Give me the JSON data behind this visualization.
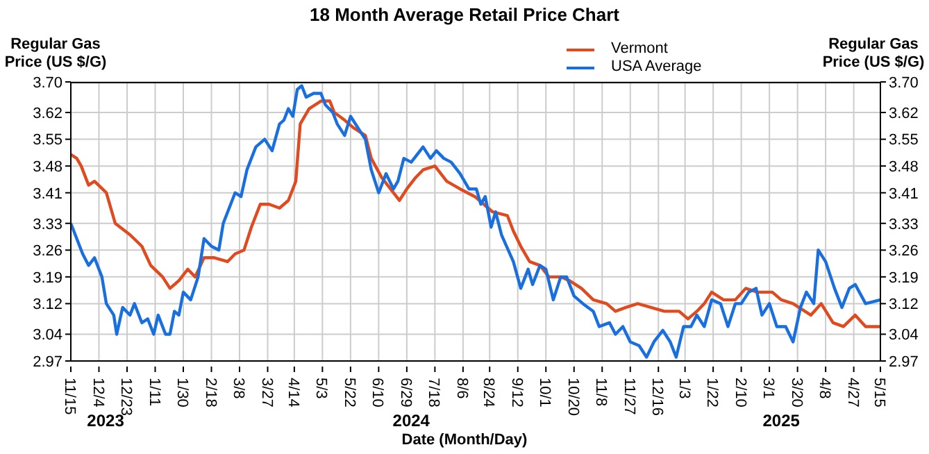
{
  "chart_data": {
    "type": "line",
    "title": "18 Month Average Retail Price Chart",
    "xlabel": "Date (Month/Day)",
    "ylabel": "Regular Gas Price (US $/G)",
    "y2label": "Regular Gas Price (US $/G)",
    "legend": "top",
    "grid": true,
    "xlim": [
      "2023-11-15",
      "2025-05-15"
    ],
    "xticks": [
      {
        "value": "2023-11-15",
        "label": "11/15"
      },
      {
        "value": "2023-12-04",
        "label": "12/4"
      },
      {
        "value": "2023-12-23",
        "label": "12/23"
      },
      {
        "value": "2024-01-11",
        "label": "1/11"
      },
      {
        "value": "2024-01-30",
        "label": "1/30"
      },
      {
        "value": "2024-02-18",
        "label": "2/18"
      },
      {
        "value": "2024-03-08",
        "label": "3/8"
      },
      {
        "value": "2024-03-27",
        "label": "3/27"
      },
      {
        "value": "2024-04-14",
        "label": "4/14"
      },
      {
        "value": "2024-05-03",
        "label": "5/3"
      },
      {
        "value": "2024-05-22",
        "label": "5/22"
      },
      {
        "value": "2024-06-10",
        "label": "6/10"
      },
      {
        "value": "2024-06-29",
        "label": "6/29"
      },
      {
        "value": "2024-07-18",
        "label": "7/18"
      },
      {
        "value": "2024-08-06",
        "label": "8/6"
      },
      {
        "value": "2024-08-24",
        "label": "8/24"
      },
      {
        "value": "2024-09-12",
        "label": "9/12"
      },
      {
        "value": "2024-10-01",
        "label": "10/1"
      },
      {
        "value": "2024-10-20",
        "label": "10/20"
      },
      {
        "value": "2024-11-08",
        "label": "11/8"
      },
      {
        "value": "2024-11-27",
        "label": "11/27"
      },
      {
        "value": "2024-12-16",
        "label": "12/16"
      },
      {
        "value": "2025-01-03",
        "label": "1/3"
      },
      {
        "value": "2025-01-22",
        "label": "1/22"
      },
      {
        "value": "2025-02-10",
        "label": "2/10"
      },
      {
        "value": "2025-03-01",
        "label": "3/1"
      },
      {
        "value": "2025-03-20",
        "label": "3/20"
      },
      {
        "value": "2025-04-08",
        "label": "4/8"
      },
      {
        "value": "2025-04-27",
        "label": "4/27"
      },
      {
        "value": "2025-05-15",
        "label": "5/15"
      }
    ],
    "ylim": [
      2.97,
      3.7
    ],
    "yticks": [
      2.97,
      3.04,
      3.12,
      3.19,
      3.26,
      3.33,
      3.41,
      3.48,
      3.55,
      3.62,
      {
        "value": 3.7,
        "label": "3.70"
      }
    ],
    "y2lim": [
      2.97,
      3.7
    ],
    "y2ticks": [
      2.97,
      3.04,
      3.12,
      3.19,
      3.26,
      3.33,
      3.41,
      3.48,
      3.55,
      3.62,
      {
        "value": 3.7,
        "label": "3.70"
      }
    ],
    "annotations": [
      "2023",
      "2024",
      "2025"
    ],
    "series": [
      {
        "name": "Vermont",
        "color": "#e04a1f",
        "x": [
          "2023-11-15",
          "2023-11-19",
          "2023-11-22",
          "2023-11-27",
          "2023-12-01",
          "2023-12-09",
          "2023-12-15",
          "2023-12-25",
          "2024-01-02",
          "2024-01-08",
          "2024-01-16",
          "2024-01-21",
          "2024-01-27",
          "2024-02-02",
          "2024-02-07",
          "2024-02-13",
          "2024-02-20",
          "2024-02-29",
          "2024-03-05",
          "2024-03-11",
          "2024-03-16",
          "2024-03-22",
          "2024-03-28",
          "2024-04-04",
          "2024-04-10",
          "2024-04-15",
          "2024-04-18",
          "2024-04-24",
          "2024-05-02",
          "2024-05-08",
          "2024-05-11",
          "2024-05-18",
          "2024-05-24",
          "2024-06-01",
          "2024-06-05",
          "2024-06-12",
          "2024-06-18",
          "2024-06-24",
          "2024-06-29",
          "2024-07-05",
          "2024-07-10",
          "2024-07-18",
          "2024-07-26",
          "2024-08-04",
          "2024-08-14",
          "2024-08-20",
          "2024-08-26",
          "2024-09-05",
          "2024-09-09",
          "2024-09-14",
          "2024-09-20",
          "2024-09-27",
          "2024-10-03",
          "2024-10-11",
          "2024-10-17",
          "2024-10-25",
          "2024-11-02",
          "2024-11-11",
          "2024-11-17",
          "2024-11-24",
          "2024-12-02",
          "2024-12-11",
          "2024-12-20",
          "2024-12-30",
          "2025-01-05",
          "2025-01-11",
          "2025-01-16",
          "2025-01-21",
          "2025-01-29",
          "2025-02-06",
          "2025-02-13",
          "2025-02-21",
          "2025-03-03",
          "2025-03-09",
          "2025-03-17",
          "2025-03-25",
          "2025-03-29",
          "2025-04-05",
          "2025-04-13",
          "2025-04-20",
          "2025-04-28",
          "2025-05-05",
          "2025-05-15"
        ],
        "values": [
          3.51,
          3.5,
          3.48,
          3.43,
          3.44,
          3.41,
          3.33,
          3.3,
          3.27,
          3.22,
          3.19,
          3.16,
          3.18,
          3.21,
          3.19,
          3.24,
          3.24,
          3.23,
          3.25,
          3.26,
          3.32,
          3.38,
          3.38,
          3.37,
          3.39,
          3.44,
          3.59,
          3.63,
          3.65,
          3.65,
          3.62,
          3.6,
          3.58,
          3.56,
          3.5,
          3.45,
          3.42,
          3.39,
          3.42,
          3.45,
          3.47,
          3.48,
          3.44,
          3.42,
          3.4,
          3.38,
          3.36,
          3.35,
          3.31,
          3.27,
          3.23,
          3.22,
          3.19,
          3.19,
          3.18,
          3.16,
          3.13,
          3.12,
          3.1,
          3.11,
          3.12,
          3.11,
          3.1,
          3.1,
          3.08,
          3.1,
          3.12,
          3.15,
          3.13,
          3.13,
          3.16,
          3.15,
          3.15,
          3.13,
          3.12,
          3.1,
          3.09,
          3.12,
          3.07,
          3.06,
          3.09,
          3.06,
          3.06
        ]
      },
      {
        "name": "USA Average",
        "color": "#1a6fdf",
        "x": [
          "2023-11-15",
          "2023-11-20",
          "2023-11-23",
          "2023-11-27",
          "2023-12-01",
          "2023-12-06",
          "2023-12-09",
          "2023-12-14",
          "2023-12-16",
          "2023-12-20",
          "2023-12-25",
          "2023-12-28",
          "2024-01-02",
          "2024-01-06",
          "2024-01-10",
          "2024-01-13",
          "2024-01-18",
          "2024-01-21",
          "2024-01-24",
          "2024-01-27",
          "2024-01-30",
          "2024-02-04",
          "2024-02-09",
          "2024-02-13",
          "2024-02-18",
          "2024-02-23",
          "2024-02-26",
          "2024-03-02",
          "2024-03-05",
          "2024-03-09",
          "2024-03-13",
          "2024-03-19",
          "2024-03-25",
          "2024-03-30",
          "2024-04-04",
          "2024-04-07",
          "2024-04-10",
          "2024-04-13",
          "2024-04-16",
          "2024-04-19",
          "2024-04-22",
          "2024-04-27",
          "2024-05-02",
          "2024-05-05",
          "2024-05-10",
          "2024-05-13",
          "2024-05-18",
          "2024-05-22",
          "2024-05-27",
          "2024-06-01",
          "2024-06-05",
          "2024-06-10",
          "2024-06-15",
          "2024-06-20",
          "2024-06-23",
          "2024-06-27",
          "2024-07-02",
          "2024-07-10",
          "2024-07-15",
          "2024-07-19",
          "2024-07-24",
          "2024-07-29",
          "2024-08-04",
          "2024-08-10",
          "2024-08-15",
          "2024-08-18",
          "2024-08-21",
          "2024-08-25",
          "2024-08-28",
          "2024-09-01",
          "2024-09-09",
          "2024-09-14",
          "2024-09-19",
          "2024-09-22",
          "2024-09-27",
          "2024-10-01",
          "2024-10-06",
          "2024-10-11",
          "2024-10-15",
          "2024-10-20",
          "2024-10-26",
          "2024-11-02",
          "2024-11-06",
          "2024-11-13",
          "2024-11-17",
          "2024-11-22",
          "2024-11-27",
          "2024-12-03",
          "2024-12-08",
          "2024-12-13",
          "2024-12-19",
          "2024-12-24",
          "2024-12-28",
          "2025-01-02",
          "2025-01-07",
          "2025-01-11",
          "2025-01-16",
          "2025-01-21",
          "2025-01-27",
          "2025-02-01",
          "2025-02-06",
          "2025-02-10",
          "2025-02-15",
          "2025-02-20",
          "2025-02-24",
          "2025-03-01",
          "2025-03-06",
          "2025-03-12",
          "2025-03-17",
          "2025-03-22",
          "2025-03-26",
          "2025-03-31",
          "2025-04-03",
          "2025-04-08",
          "2025-04-14",
          "2025-04-19",
          "2025-04-24",
          "2025-04-28",
          "2025-05-05",
          "2025-05-15"
        ],
        "values": [
          3.33,
          3.28,
          3.25,
          3.22,
          3.24,
          3.19,
          3.12,
          3.09,
          3.04,
          3.11,
          3.09,
          3.12,
          3.07,
          3.08,
          3.04,
          3.09,
          3.04,
          3.04,
          3.1,
          3.09,
          3.15,
          3.13,
          3.19,
          3.29,
          3.27,
          3.26,
          3.33,
          3.38,
          3.41,
          3.4,
          3.47,
          3.53,
          3.55,
          3.52,
          3.59,
          3.6,
          3.63,
          3.61,
          3.68,
          3.69,
          3.66,
          3.67,
          3.67,
          3.64,
          3.62,
          3.59,
          3.56,
          3.61,
          3.58,
          3.55,
          3.47,
          3.41,
          3.46,
          3.42,
          3.44,
          3.5,
          3.49,
          3.53,
          3.5,
          3.52,
          3.5,
          3.49,
          3.46,
          3.42,
          3.42,
          3.38,
          3.4,
          3.32,
          3.36,
          3.3,
          3.23,
          3.16,
          3.21,
          3.17,
          3.22,
          3.21,
          3.13,
          3.19,
          3.19,
          3.14,
          3.12,
          3.1,
          3.06,
          3.07,
          3.04,
          3.06,
          3.02,
          3.01,
          2.98,
          3.02,
          3.05,
          3.02,
          2.98,
          3.06,
          3.06,
          3.09,
          3.06,
          3.13,
          3.12,
          3.06,
          3.12,
          3.12,
          3.15,
          3.16,
          3.09,
          3.12,
          3.06,
          3.06,
          3.02,
          3.11,
          3.15,
          3.12,
          3.26,
          3.23,
          3.16,
          3.11,
          3.16,
          3.17,
          3.12,
          3.13
        ]
      }
    ]
  }
}
